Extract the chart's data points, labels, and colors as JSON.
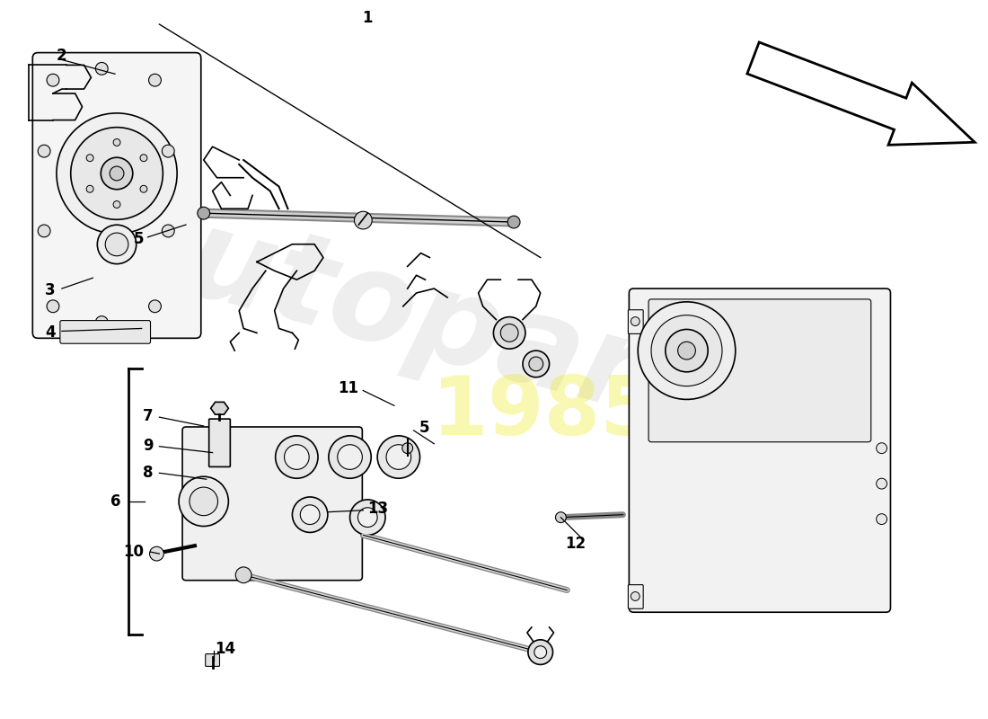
{
  "bg": "#ffffff",
  "lc": "#000000",
  "wm_color": "#e8e8e8",
  "wm_yellow": "#e8e800",
  "label_fs": 12,
  "arrow_outline": "#000000"
}
